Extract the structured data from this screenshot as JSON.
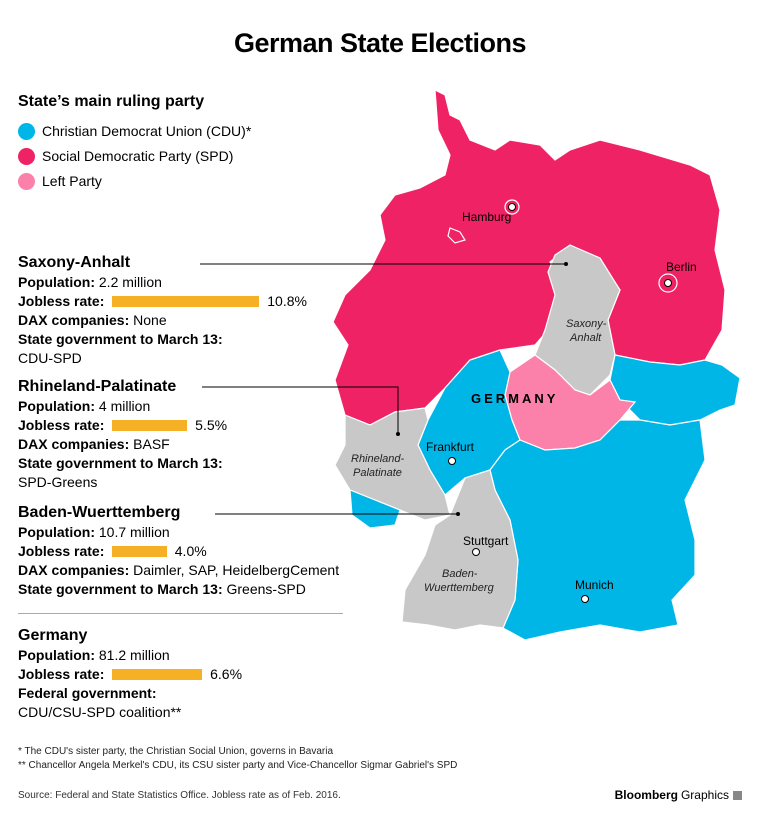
{
  "title": "German State Elections",
  "legend": {
    "title": "State’s main ruling party",
    "items": [
      {
        "label": "Christian Democrat Union (CDU)*",
        "color": "#00b6e6"
      },
      {
        "label": "Social Democratic Party (SPD)",
        "color": "#f02266"
      },
      {
        "label": "Left Party",
        "color": "#fb80aa"
      }
    ]
  },
  "states": [
    {
      "name": "Saxony-Anhalt",
      "population_label": "Population:",
      "population": "2.2 million",
      "jobless_label": "Jobless rate:",
      "jobless_rate": 10.8,
      "jobless_text": "10.8%",
      "dax_label": "DAX companies:",
      "dax": "None",
      "gov_label": "State government to March 13:",
      "gov": "CDU-SPD"
    },
    {
      "name": "Rhineland-Palatinate",
      "population_label": "Population:",
      "population": "4 million",
      "jobless_label": "Jobless rate:",
      "jobless_rate": 5.5,
      "jobless_text": "5.5%",
      "dax_label": "DAX companies:",
      "dax": "BASF",
      "gov_label": "State government to March 13:",
      "gov": "SPD-Greens"
    },
    {
      "name": "Baden-Wuerttemberg",
      "population_label": "Population:",
      "population": "10.7 million",
      "jobless_label": "Jobless rate:",
      "jobless_rate": 4.0,
      "jobless_text": "4.0%",
      "dax_label": "DAX companies:",
      "dax": "Daimler, SAP, HeidelbergCement",
      "gov_label": "State government to March 13:",
      "gov": "Greens-SPD"
    }
  ],
  "germany": {
    "name": "Germany",
    "population_label": "Population:",
    "population": "81.2 million",
    "jobless_label": "Jobless rate:",
    "jobless_rate": 6.6,
    "jobless_text": "6.6%",
    "gov_label": "Federal government:",
    "gov": "CDU/CSU-SPD coalition**"
  },
  "map": {
    "country_label": "GERMANY",
    "cities": [
      "Hamburg",
      "Berlin",
      "Frankfurt",
      "Stuttgart",
      "Munich"
    ],
    "state_labels": {
      "saxony_anhalt": [
        "Saxony-",
        "Anhalt"
      ],
      "rhineland_palatinate": [
        "Rhineland-",
        "Palatinate"
      ],
      "baden_wuerttemberg": [
        "Baden-",
        "Wuerttemberg"
      ]
    },
    "colors": {
      "cdu": "#00b6e6",
      "spd": "#f02266",
      "left": "#fb80aa",
      "focus": "#c8c8c8"
    }
  },
  "notes": [
    "*  The CDU's sister party, the Christian Social Union, governs in Bavaria",
    "** Chancellor Angela Merkel's CDU, its CSU sister party and Vice-Chancellor Sigmar Gabriel's SPD"
  ],
  "source": "Source: Federal and State Statistics Office. Jobless rate as of Feb. 2016.",
  "brand": {
    "bold": "Bloomberg",
    "light": "Graphics"
  }
}
